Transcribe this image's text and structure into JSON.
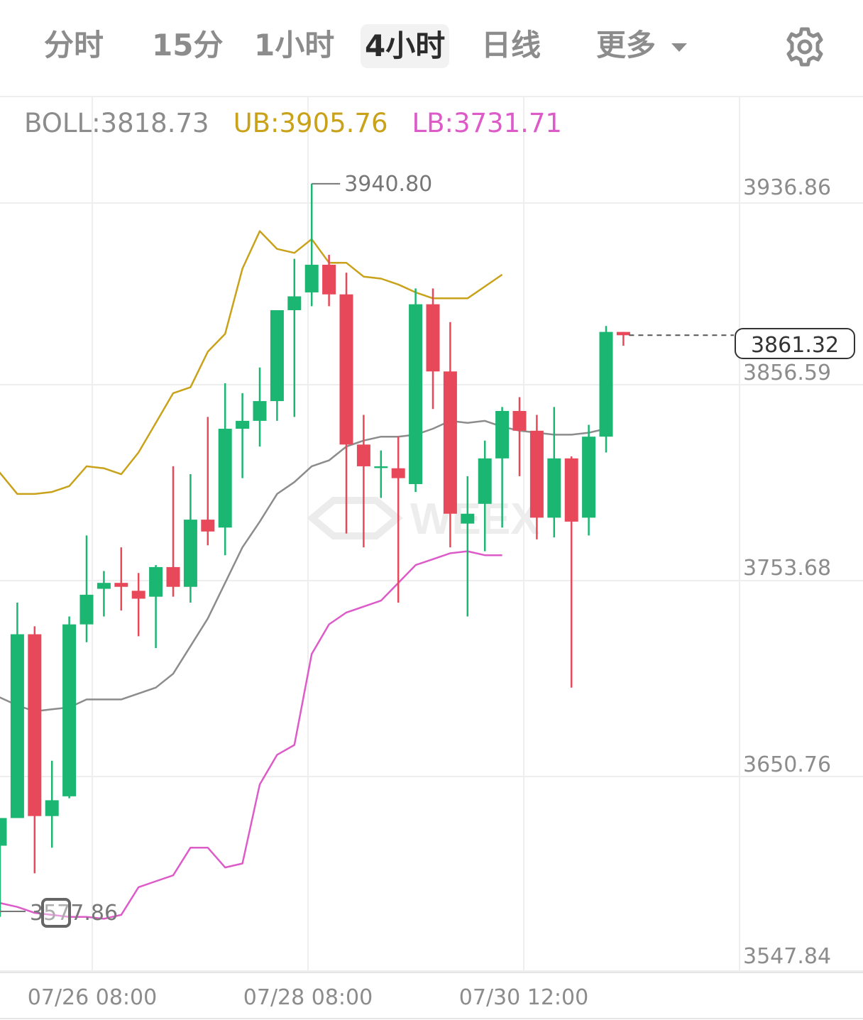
{
  "toolbar": {
    "tabs": [
      {
        "label": "分时"
      },
      {
        "label": "15分"
      },
      {
        "label": "1小时"
      },
      {
        "label": "4小时",
        "active": true
      },
      {
        "label": "日线"
      }
    ],
    "more_label": "更多",
    "settings_icon": "gear-icon"
  },
  "indicators": {
    "boll": "BOLL:3818.73",
    "ub": "UB:3905.76",
    "lb": "LB:3731.71",
    "colors": {
      "boll": "#8c8c8c",
      "ub": "#c9a21a",
      "lb": "#dd5bc9"
    }
  },
  "watermark": "WEEX",
  "chart_data": {
    "type": "candlestick",
    "y_ticks": [
      "3936.86",
      "3856.59",
      "3753.68",
      "3650.76",
      "3547.84"
    ],
    "x_ticks": [
      "07/26 08:00",
      "07/28 08:00",
      "07/30 12:00"
    ],
    "ylim": [
      3547.84,
      3936.86
    ],
    "last_price": "3861.32",
    "high_label": "3940.80",
    "low_label": "3577.86",
    "colors": {
      "up": "#1bb672",
      "down": "#e8495a",
      "mid": "#8c8c8c",
      "upper": "#c9a21a",
      "lower": "#dd5bc9"
    },
    "candles": [
      {
        "o": 3603.0,
        "h": 3617.0,
        "l": 3567.0,
        "c": 3617.0
      },
      {
        "o": 3617.0,
        "h": 3726.0,
        "l": 3617.0,
        "c": 3710.0
      },
      {
        "o": 3710.0,
        "h": 3714.0,
        "l": 3589.0,
        "c": 3618.0
      },
      {
        "o": 3618.0,
        "h": 3646.0,
        "l": 3602.0,
        "c": 3626.0
      },
      {
        "o": 3628.0,
        "h": 3719.0,
        "l": 3627.0,
        "c": 3715.0
      },
      {
        "o": 3715.0,
        "h": 3760.0,
        "l": 3706.0,
        "c": 3730.0
      },
      {
        "o": 3733.0,
        "h": 3742.0,
        "l": 3719.0,
        "c": 3736.0
      },
      {
        "o": 3736.0,
        "h": 3754.0,
        "l": 3722.0,
        "c": 3734.0
      },
      {
        "o": 3732.0,
        "h": 3741.0,
        "l": 3709.0,
        "c": 3728.0
      },
      {
        "o": 3729.0,
        "h": 3745.0,
        "l": 3703.0,
        "c": 3744.0
      },
      {
        "o": 3744.0,
        "h": 3795.0,
        "l": 3729.0,
        "c": 3734.0
      },
      {
        "o": 3734.0,
        "h": 3791.0,
        "l": 3726.0,
        "c": 3768.0
      },
      {
        "o": 3768.0,
        "h": 3820.0,
        "l": 3755.0,
        "c": 3762.0
      },
      {
        "o": 3764.0,
        "h": 3837.0,
        "l": 3750.0,
        "c": 3814.0
      },
      {
        "o": 3814.0,
        "h": 3832.0,
        "l": 3789.0,
        "c": 3818.0
      },
      {
        "o": 3818.0,
        "h": 3845.0,
        "l": 3805.0,
        "c": 3828.0
      },
      {
        "o": 3828.0,
        "h": 3872.0,
        "l": 3818.0,
        "c": 3874.0
      },
      {
        "o": 3874.0,
        "h": 3900.0,
        "l": 3820.0,
        "c": 3881.0
      },
      {
        "o": 3883.0,
        "h": 3938.0,
        "l": 3876.0,
        "c": 3897.0
      },
      {
        "o": 3897.0,
        "h": 3902.0,
        "l": 3876.0,
        "c": 3882.0
      },
      {
        "o": 3882.0,
        "h": 3893.0,
        "l": 3761.0,
        "c": 3806.0
      },
      {
        "o": 3806.0,
        "h": 3821.0,
        "l": 3754.0,
        "c": 3795.0
      },
      {
        "o": 3795.0,
        "h": 3803.0,
        "l": 3779.0,
        "c": 3795.0
      },
      {
        "o": 3794.0,
        "h": 3810.0,
        "l": 3726.0,
        "c": 3789.0
      },
      {
        "o": 3786.0,
        "h": 3885.0,
        "l": 3782.0,
        "c": 3877.0
      },
      {
        "o": 3877.0,
        "h": 3885.0,
        "l": 3824.0,
        "c": 3843.0
      },
      {
        "o": 3843.0,
        "h": 3868.0,
        "l": 3754.0,
        "c": 3771.0
      },
      {
        "o": 3766.0,
        "h": 3790.0,
        "l": 3719.0,
        "c": 3771.0
      },
      {
        "o": 3776.0,
        "h": 3808.0,
        "l": 3752.0,
        "c": 3799.0
      },
      {
        "o": 3799.0,
        "h": 3825.0,
        "l": 3764.0,
        "c": 3823.0
      },
      {
        "o": 3823.0,
        "h": 3830.0,
        "l": 3790.0,
        "c": 3813.0
      },
      {
        "o": 3813.0,
        "h": 3821.0,
        "l": 3758.0,
        "c": 3769.0
      },
      {
        "o": 3769.0,
        "h": 3825.0,
        "l": 3759.0,
        "c": 3799.0
      },
      {
        "o": 3799.0,
        "h": 3800.0,
        "l": 3683.0,
        "c": 3767.0
      },
      {
        "o": 3769.0,
        "h": 3816.0,
        "l": 3760.0,
        "c": 3810.0
      },
      {
        "o": 3810.0,
        "h": 3866.0,
        "l": 3802.0,
        "c": 3863.0
      },
      {
        "o": 3863.0,
        "h": 3863.0,
        "l": 3856.0,
        "c": 3861.32
      }
    ],
    "mid_band": [
      [
        -0.5,
        3680
      ],
      [
        1,
        3674
      ],
      [
        2,
        3671
      ],
      [
        3,
        3672
      ],
      [
        4,
        3673
      ],
      [
        5,
        3677
      ],
      [
        6,
        3677
      ],
      [
        7,
        3677
      ],
      [
        8,
        3680
      ],
      [
        9,
        3683
      ],
      [
        10,
        3690
      ],
      [
        11,
        3704
      ],
      [
        12,
        3718
      ],
      [
        13,
        3736
      ],
      [
        14,
        3754
      ],
      [
        15,
        3767
      ],
      [
        16,
        3781
      ],
      [
        17,
        3787
      ],
      [
        18,
        3795
      ],
      [
        19,
        3798
      ],
      [
        20,
        3805
      ],
      [
        21,
        3808
      ],
      [
        22,
        3810
      ],
      [
        23,
        3810
      ],
      [
        24,
        3811
      ],
      [
        25,
        3814
      ],
      [
        26,
        3818
      ],
      [
        27,
        3817
      ],
      [
        28,
        3818
      ],
      [
        29,
        3815
      ],
      [
        30,
        3813
      ],
      [
        31,
        3812
      ],
      [
        32,
        3811
      ],
      [
        33,
        3811
      ],
      [
        34,
        3812
      ],
      [
        35,
        3814
      ]
    ],
    "upper_band": [
      [
        -0.5,
        3797
      ],
      [
        1,
        3781
      ],
      [
        2,
        3781
      ],
      [
        3,
        3782
      ],
      [
        4,
        3785
      ],
      [
        5,
        3795
      ],
      [
        6,
        3794
      ],
      [
        7,
        3791
      ],
      [
        8,
        3802
      ],
      [
        9,
        3817
      ],
      [
        10,
        3832
      ],
      [
        11,
        3835
      ],
      [
        12,
        3853
      ],
      [
        13,
        3862
      ],
      [
        14,
        3895
      ],
      [
        15,
        3914
      ],
      [
        16,
        3905
      ],
      [
        17,
        3903
      ],
      [
        18,
        3910
      ],
      [
        19,
        3898
      ],
      [
        20,
        3898
      ],
      [
        21,
        3891
      ],
      [
        22,
        3890
      ],
      [
        23,
        3887
      ],
      [
        24,
        3883
      ],
      [
        25,
        3880
      ],
      [
        26,
        3880
      ],
      [
        27,
        3880
      ],
      [
        28,
        3886
      ],
      [
        29,
        3892
      ]
    ],
    "lower_band": [
      [
        -0.5,
        3575
      ],
      [
        1,
        3572
      ],
      [
        2,
        3569
      ],
      [
        3,
        3568
      ],
      [
        4,
        3567
      ],
      [
        5,
        3567
      ],
      [
        6,
        3566
      ],
      [
        7,
        3568
      ],
      [
        8,
        3582
      ],
      [
        9,
        3585
      ],
      [
        10,
        3588
      ],
      [
        11,
        3602
      ],
      [
        12,
        3602
      ],
      [
        13,
        3592
      ],
      [
        14,
        3594
      ],
      [
        15,
        3634
      ],
      [
        16,
        3649
      ],
      [
        17,
        3654
      ],
      [
        18,
        3700
      ],
      [
        19,
        3715
      ],
      [
        20,
        3721
      ],
      [
        21,
        3724
      ],
      [
        22,
        3727
      ],
      [
        23,
        3736
      ],
      [
        24,
        3745
      ],
      [
        25,
        3748
      ],
      [
        26,
        3751
      ],
      [
        27,
        3752
      ],
      [
        28,
        3750
      ],
      [
        29,
        3750
      ]
    ]
  }
}
